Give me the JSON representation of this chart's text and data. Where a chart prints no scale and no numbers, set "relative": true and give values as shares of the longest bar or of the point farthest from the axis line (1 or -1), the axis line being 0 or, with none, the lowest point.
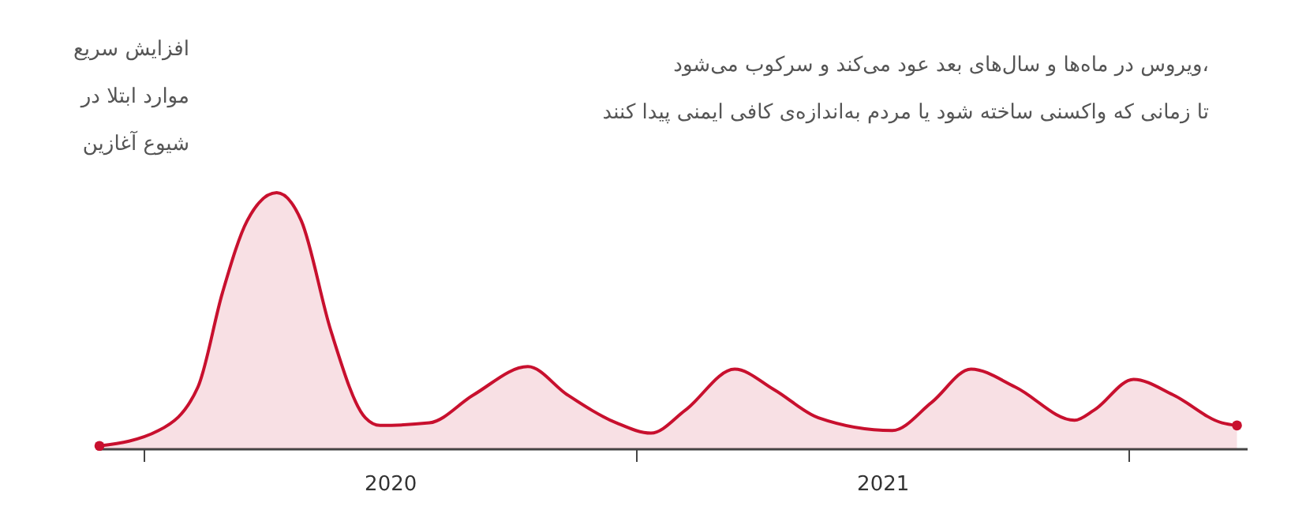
{
  "chart_data": {
    "type": "area",
    "relative": true,
    "grid": false,
    "xlim": [
      2019.91,
      2022.24
    ],
    "xticks": [
      {
        "value": 2020,
        "label": null
      },
      {
        "value": 2020.5,
        "label": "2020"
      },
      {
        "value": 2021,
        "label": null
      },
      {
        "value": 2021.5,
        "label": "2021"
      },
      {
        "value": 2022,
        "label": null
      }
    ],
    "annotations": [
      "افزایش سریع\nموارد ابتلا در\nشیوع آغازین",
      "ویروس در ماه‌ها و سال‌های بعد عود می‌کند و سرکوب می‌شود،\nتا زمانی که واکسنی ساخته شود یا مردم به‌اندازه‌ی کافی ایمنی پیدا کنند"
    ],
    "series": [
      {
        "color": "#c8102e",
        "x": [
          2019.91,
          2020.03,
          2020.11,
          2020.16,
          2020.21,
          2020.27,
          2020.32,
          2020.38,
          2020.45,
          2020.48,
          2020.58,
          2020.67,
          2020.78,
          2020.86,
          2020.96,
          2021.03,
          2021.1,
          2021.2,
          2021.28,
          2021.37,
          2021.52,
          2021.6,
          2021.68,
          2021.77,
          2021.89,
          2021.93,
          2022.01,
          2022.09,
          2022.19,
          2022.22
        ],
        "values": [
          0.01,
          0.07,
          0.24,
          0.61,
          0.89,
          1.0,
          0.89,
          0.46,
          0.12,
          0.09,
          0.1,
          0.21,
          0.32,
          0.21,
          0.1,
          0.06,
          0.15,
          0.31,
          0.23,
          0.12,
          0.07,
          0.18,
          0.31,
          0.24,
          0.11,
          0.15,
          0.27,
          0.21,
          0.1,
          0.09
        ]
      },
      {
        "type": "scatter",
        "color": "#c8102e",
        "marker": "circle",
        "x": [
          2019.91,
          2022.22
        ],
        "values": [
          0.01,
          0.09
        ]
      }
    ]
  }
}
